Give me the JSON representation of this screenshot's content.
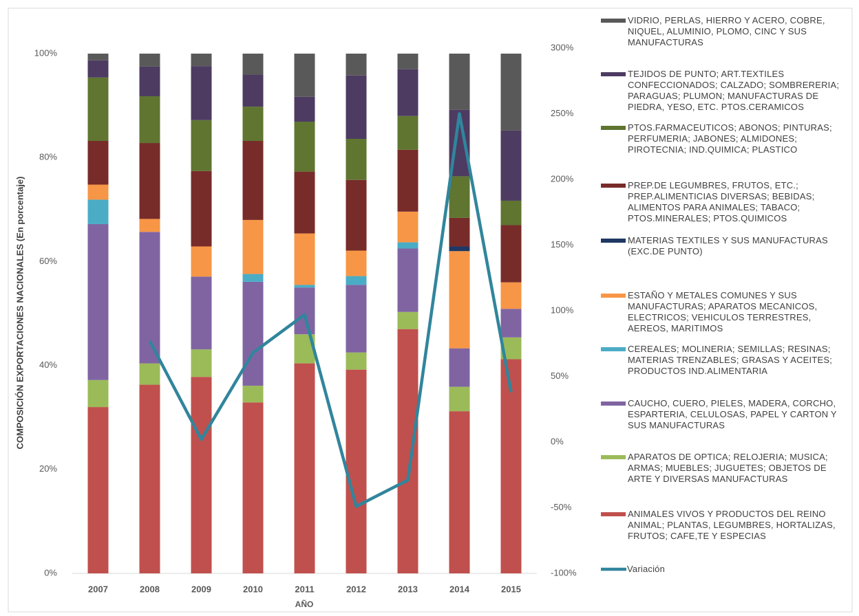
{
  "chart_data": {
    "type": "bar",
    "stacked": true,
    "y_label": "COMPOSICIÓN EXPORTACIONES NACIONALES (En porcentaje)",
    "x_label": "AÑO",
    "categories": [
      "2007",
      "2008",
      "2009",
      "2010",
      "2011",
      "2012",
      "2013",
      "2014",
      "2015"
    ],
    "ylim": [
      0,
      100
    ],
    "yticks": [
      {
        "value": 0,
        "label": "0%"
      },
      {
        "value": 20,
        "label": "20%"
      },
      {
        "value": 40,
        "label": "40%"
      },
      {
        "value": 60,
        "label": "60%"
      },
      {
        "value": 80,
        "label": "80%"
      },
      {
        "value": 100,
        "label": "100%"
      }
    ],
    "y2lim": [
      -100,
      300
    ],
    "y2ticks": [
      {
        "value": -100,
        "label": "-100%"
      },
      {
        "value": -50,
        "label": "-50%"
      },
      {
        "value": 0,
        "label": "0%"
      },
      {
        "value": 50,
        "label": "50%"
      },
      {
        "value": 100,
        "label": "100%"
      },
      {
        "value": 150,
        "label": "150%"
      },
      {
        "value": 200,
        "label": "200%"
      },
      {
        "value": 250,
        "label": "250%"
      },
      {
        "value": 300,
        "label": "300%"
      }
    ],
    "legend": "right",
    "series": [
      {
        "name": "ANIMALES VIVOS Y PRODUCTOS DEL REINO ANIMAL; PLANTAS, LEGUMBRES, HORTALIZAS, FRUTOS; CAFE,TE Y ESPECIAS",
        "color": "#c0504d",
        "values": [
          32.0,
          36.3,
          37.8,
          32.9,
          40.4,
          39.2,
          47.0,
          31.2,
          41.2
        ]
      },
      {
        "name": "APARATOS DE OPTICA; RELOJERIA; MUSICA; ARMAS; MUEBLES; JUGUETES; OBJETOS DE ARTE Y DIVERSAS MANUFACTURAS",
        "color": "#9bbb59",
        "values": [
          5.2,
          4.1,
          5.3,
          3.2,
          5.6,
          3.3,
          3.3,
          4.7,
          4.2
        ]
      },
      {
        "name": "CAUCHO, CUERO, PIELES, MADERA, CORCHO, ESPARTERIA, CELULOSAS, PAPEL Y CARTON Y SUS MANUFACTURAS",
        "color": "#8064a2",
        "values": [
          30.0,
          25.3,
          14.0,
          20.0,
          9.0,
          13.0,
          12.2,
          7.4,
          5.5
        ]
      },
      {
        "name": "CEREALES; MOLINERIA; SEMILLAS; RESINAS; MATERIAS TRENZABLES; GRASAS Y ACEITES; PRODUCTOS IND.ALIMENTARIA",
        "color": "#4bacc6",
        "values": [
          4.7,
          0,
          0,
          1.5,
          0.5,
          1.7,
          1.2,
          0,
          0
        ]
      },
      {
        "name": "ESTAÑO Y METALES COMUNES Y SUS MANUFACTURAS; APARATOS MECANICOS, ELECTRICOS; VEHICULOS TERRESTRES, AEREOS, MARITIMOS",
        "color": "#f79646",
        "values": [
          2.9,
          2.5,
          5.8,
          10.4,
          9.9,
          4.9,
          5.9,
          18.7,
          5.1
        ]
      },
      {
        "name": "MATERIAS TEXTILES Y SUS MANUFACTURAS (EXC.DE PUNTO)",
        "color": "#1f3864",
        "values": [
          0,
          0,
          0,
          0,
          0,
          0,
          0,
          0.9,
          0
        ]
      },
      {
        "name": "PREP.DE LEGUMBRES, FRUTOS, ETC.; PREP.ALIMENTICIAS DIVERSAS; BEBIDAS; ALIMENTOS PARA ANIMALES; TABACO; PTOS.MINERALES; PTOS.QUIMICOS",
        "color": "#772c2a",
        "values": [
          8.4,
          14.6,
          14.5,
          15.2,
          11.9,
          13.6,
          11.9,
          5.5,
          11.0
        ]
      },
      {
        "name": "PTOS.FARMACEUTICOS; ABONOS; PINTURAS; PERFUMERIA; JABONES; ALMIDONES; PIROTECNIA; IND.QUIMICA; PLASTICO",
        "color": "#5f7530",
        "values": [
          12.2,
          9.0,
          9.8,
          6.6,
          9.6,
          7.9,
          6.5,
          8.0,
          4.7
        ]
      },
      {
        "name": "TEJIDOS DE PUNTO; ART.TEXTILES CONFECCIONADOS; CALZADO; SOMBRERERIA; PARAGUAS; PLUMON; MANUFACTURAS DE PIEDRA, YESO, ETC. PTOS.CERAMICOS",
        "color": "#4d3b62",
        "values": [
          3.3,
          5.7,
          10.4,
          6.1,
          4.8,
          12.2,
          9.0,
          12.8,
          13.5
        ]
      },
      {
        "name": "VIDRIO, PERLAS, HIERRO Y ACERO, COBRE, NIQUEL, ALUMINIO, PLOMO, CINC Y SUS MANUFACTURAS",
        "color": "#595959",
        "values": [
          1.3,
          2.5,
          2.4,
          4.1,
          8.3,
          4.2,
          3.0,
          10.8,
          14.8
        ]
      },
      {
        "name": "Variación",
        "color": "#31859c",
        "type": "line",
        "axis": "y2",
        "values": [
          null,
          77,
          2,
          68,
          97,
          -49,
          -29,
          250,
          38
        ]
      }
    ]
  }
}
